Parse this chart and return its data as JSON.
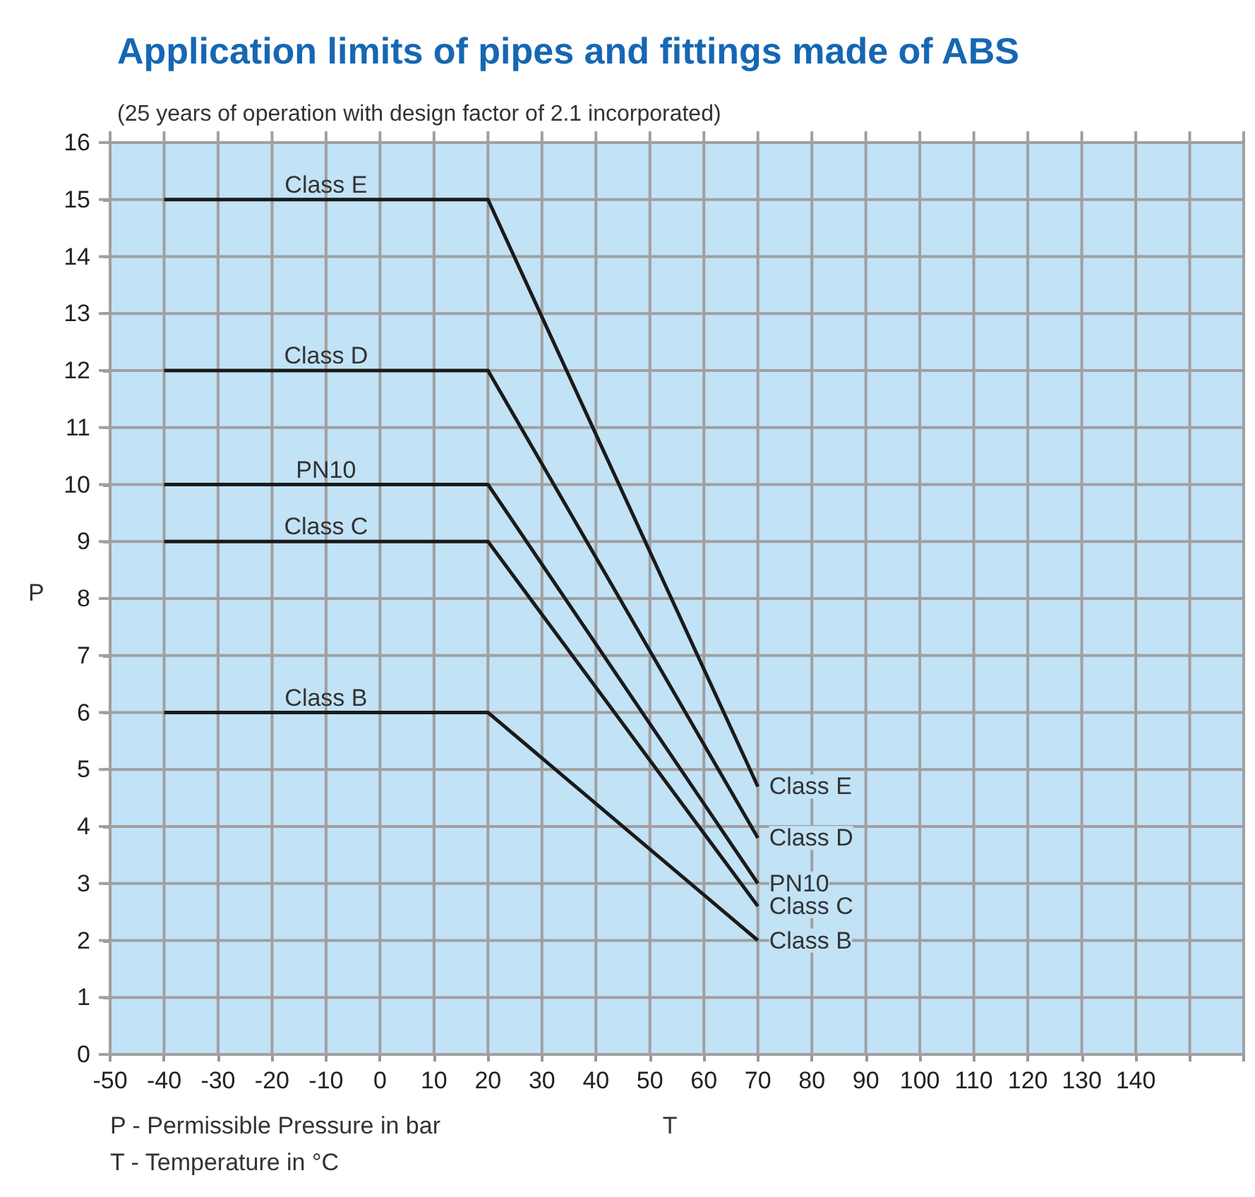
{
  "chart_data": {
    "type": "line",
    "title": "Application limits of pipes and fittings made of ABS",
    "subtitle": "(25 years of operation with design factor of 2.1 incorporated)",
    "xlabel": "T",
    "ylabel": "P",
    "annotations": [
      "P - Permissible Pressure in bar",
      "T - Temperature in °C"
    ],
    "x": [
      -40,
      20,
      70
    ],
    "series": [
      {
        "name": "Class E",
        "color": "#1a1a1a",
        "values": [
          15,
          15,
          4.7
        ]
      },
      {
        "name": "Class D",
        "color": "#1a1a1a",
        "values": [
          12,
          12,
          3.8
        ]
      },
      {
        "name": "PN10",
        "color": "#1a1a1a",
        "values": [
          10,
          10,
          3.0
        ]
      },
      {
        "name": "Class C",
        "color": "#1a1a1a",
        "values": [
          9,
          9,
          2.6
        ]
      },
      {
        "name": "Class B",
        "color": "#1a1a1a",
        "values": [
          6,
          6,
          2.0
        ]
      }
    ],
    "xlim": [
      -50,
      160
    ],
    "xticks": [
      -50,
      -40,
      -30,
      -20,
      -10,
      0,
      10,
      20,
      30,
      40,
      50,
      60,
      70,
      80,
      90,
      100,
      110,
      120,
      130,
      140,
      {
        "value": 150,
        "label": null
      },
      {
        "value": 160,
        "label": null
      }
    ],
    "ylim": [
      0,
      16
    ],
    "yticks": [
      0,
      1,
      2,
      3,
      4,
      5,
      6,
      7,
      8,
      9,
      10,
      11,
      12,
      13,
      14,
      15,
      16
    ],
    "grid": true,
    "legend": false,
    "marker": "none",
    "line_style": "solid"
  }
}
